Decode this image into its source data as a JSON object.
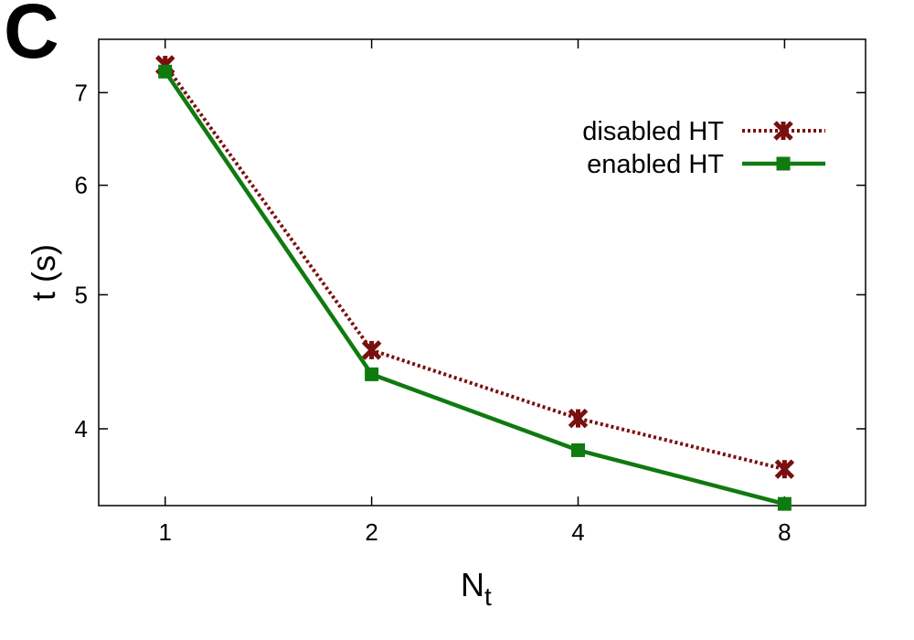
{
  "panel_label": "C",
  "chart_data": {
    "type": "line",
    "xscale": "log2",
    "yscale": "log",
    "x": [
      1,
      2,
      4,
      8
    ],
    "xticks": [
      "1",
      "2",
      "4",
      "8"
    ],
    "yticks": [
      4,
      5,
      6,
      7
    ],
    "ytick_labels": [
      "4",
      "5",
      "6",
      "7"
    ],
    "xlabel": "N",
    "xlabel_sub": "t",
    "ylabel": "t (s)",
    "ylim": [
      3.52,
      7.65
    ],
    "xlim": [
      0.8,
      10.5
    ],
    "legend_position": "top-right",
    "series": [
      {
        "name": "disabled HT",
        "values": [
          7.33,
          4.56,
          4.07,
          3.74
        ],
        "color": "#7a0f0f",
        "marker": "asterisk",
        "line": "dotted"
      },
      {
        "name": "enabled HT",
        "values": [
          7.25,
          4.38,
          3.86,
          3.53
        ],
        "color": "#0f7a10",
        "marker": "square",
        "line": "solid"
      }
    ]
  }
}
